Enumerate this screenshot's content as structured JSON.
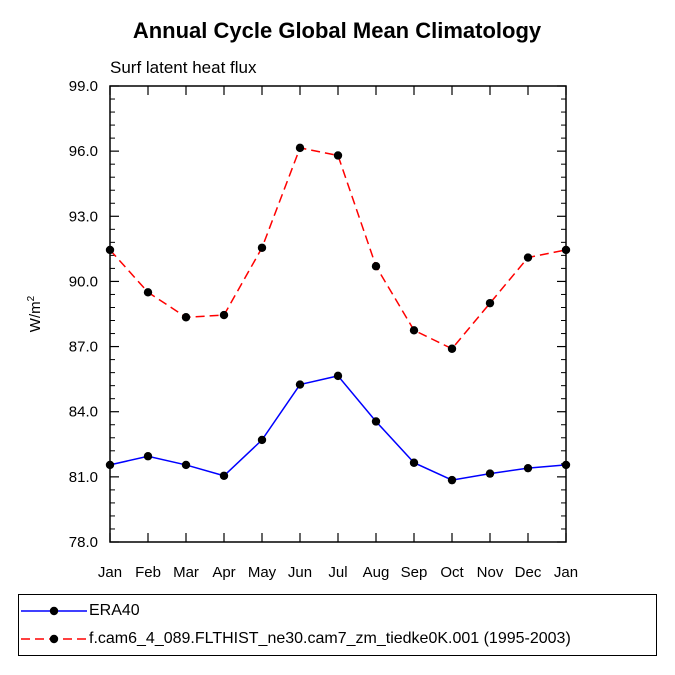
{
  "chart_data": {
    "type": "line",
    "title": "Annual Cycle Global Mean Climatology",
    "subtitle": "Surf latent heat flux",
    "xlabel": "",
    "ylabel": "W/m",
    "ylabel_superscript": "2",
    "categories": [
      "Jan",
      "Feb",
      "Mar",
      "Apr",
      "May",
      "Jun",
      "Jul",
      "Aug",
      "Sep",
      "Oct",
      "Nov",
      "Dec",
      "Jan"
    ],
    "ylim": [
      78.0,
      99.0
    ],
    "yticks": [
      "78.0",
      "81.0",
      "84.0",
      "87.0",
      "90.0",
      "93.0",
      "96.0",
      "99.0"
    ],
    "grid": false,
    "legend_position": "bottom",
    "series": [
      {
        "name": "ERA40",
        "color": "#0000ff",
        "dash": "solid",
        "values": [
          81.55,
          81.95,
          81.55,
          81.05,
          82.7,
          85.25,
          85.65,
          83.55,
          81.65,
          80.85,
          81.15,
          81.4,
          81.55
        ]
      },
      {
        "name": "f.cam6_4_089.FLTHIST_ne30.cam7_zm_tiedke0K.001 (1995-2003)",
        "color": "#ff0000",
        "dash": "dashed",
        "values": [
          91.45,
          89.5,
          88.35,
          88.45,
          91.55,
          96.15,
          95.8,
          90.7,
          87.75,
          86.9,
          89.0,
          91.1,
          91.45
        ]
      }
    ]
  }
}
